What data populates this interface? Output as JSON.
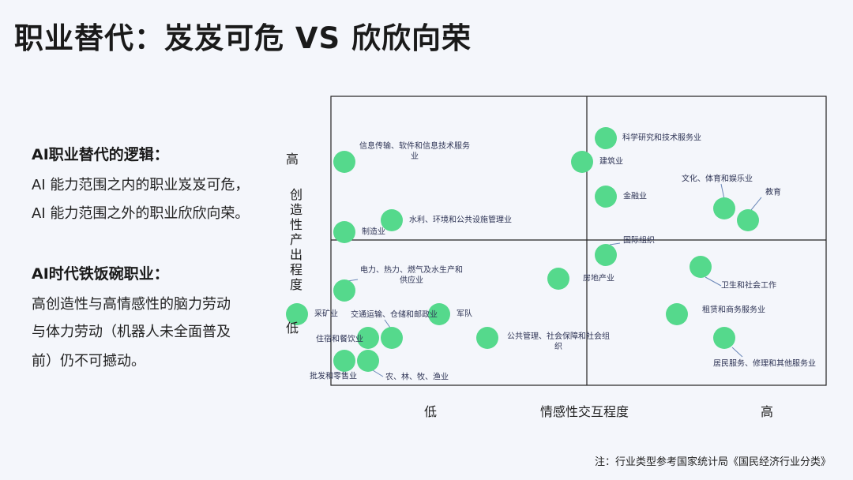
{
  "title": "职业替代：岌岌可危 VS 欣欣向荣",
  "left_panel": [
    {
      "heading": "AI职业替代的逻辑：",
      "lines": [
        "AI 能力范围之内的职业岌岌可危，",
        "AI 能力范围之外的职业欣欣向荣。"
      ]
    },
    {
      "heading": "AI时代铁饭碗职业：",
      "lines": [
        "高创造性与高情感性的脑力劳动",
        "与体力劳动（机器人未全面普及",
        "前）仍不可撼动。"
      ]
    }
  ],
  "y_axis": {
    "high": "高",
    "label": "创造性产出程度",
    "low": "低"
  },
  "x_axis": {
    "low": "低",
    "label": "情感性交互程度",
    "high": "高"
  },
  "nodes": [
    {
      "label": "信息传输、软件和信息技术服务业"
    },
    {
      "label": "科学研究和技术服务业"
    },
    {
      "label": "建筑业"
    },
    {
      "label": "金融业"
    },
    {
      "label": "文化、体育和娱乐业"
    },
    {
      "label": "教育"
    },
    {
      "label": "水利、环境和公共设施管理业"
    },
    {
      "label": "制造业"
    },
    {
      "label": "国际组织"
    },
    {
      "label": "电力、热力、燃气及水生产和供应业"
    },
    {
      "label": "房地产业"
    },
    {
      "label": "卫生和社会工作"
    },
    {
      "label": "采矿业"
    },
    {
      "label": "交通运输、仓储和邮政业"
    },
    {
      "label": "军队"
    },
    {
      "label": "公共管理、社会保障和社会组织"
    },
    {
      "label": "租赁和商务服务业"
    },
    {
      "label": "住宿和餐饮业"
    },
    {
      "label": "居民服务、修理和其他服务业"
    },
    {
      "label": "批发和零售业"
    },
    {
      "label": "农、林、牧、渔业"
    }
  ],
  "note": "注：行业类型参考国家统计局《国民经济行业分类》"
}
